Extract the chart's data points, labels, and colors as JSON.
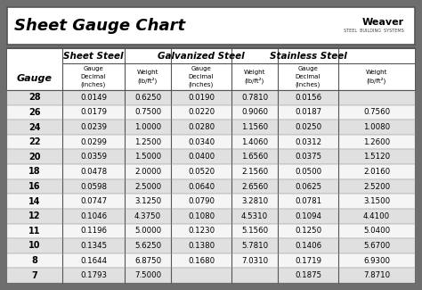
{
  "title": "Sheet Gauge Chart",
  "bg_outer": "#6e6e6e",
  "bg_white": "#ffffff",
  "bg_row_odd": "#e0e0e0",
  "bg_row_even": "#f5f5f5",
  "border_color": "#555555",
  "gauges": [
    28,
    26,
    24,
    22,
    20,
    18,
    16,
    14,
    12,
    11,
    10,
    8,
    7
  ],
  "sheet_steel": [
    [
      "0.0149",
      "0.6250"
    ],
    [
      "0.0179",
      "0.7500"
    ],
    [
      "0.0239",
      "1.0000"
    ],
    [
      "0.0299",
      "1.2500"
    ],
    [
      "0.0359",
      "1.5000"
    ],
    [
      "0.0478",
      "2.0000"
    ],
    [
      "0.0598",
      "2.5000"
    ],
    [
      "0.0747",
      "3.1250"
    ],
    [
      "0.1046",
      "4.3750"
    ],
    [
      "0.1196",
      "5.0000"
    ],
    [
      "0.1345",
      "5.6250"
    ],
    [
      "0.1644",
      "6.8750"
    ],
    [
      "0.1793",
      "7.5000"
    ]
  ],
  "galvanized_steel": [
    [
      "0.0190",
      "0.7810"
    ],
    [
      "0.0220",
      "0.9060"
    ],
    [
      "0.0280",
      "1.1560"
    ],
    [
      "0.0340",
      "1.4060"
    ],
    [
      "0.0400",
      "1.6560"
    ],
    [
      "0.0520",
      "2.1560"
    ],
    [
      "0.0640",
      "2.6560"
    ],
    [
      "0.0790",
      "3.2810"
    ],
    [
      "0.1080",
      "4.5310"
    ],
    [
      "0.1230",
      "5.1560"
    ],
    [
      "0.1380",
      "5.7810"
    ],
    [
      "0.1680",
      "7.0310"
    ],
    [
      "",
      ""
    ]
  ],
  "stainless_steel": [
    [
      "0.0156",
      ""
    ],
    [
      "0.0187",
      "0.7560"
    ],
    [
      "0.0250",
      "1.0080"
    ],
    [
      "0.0312",
      "1.2600"
    ],
    [
      "0.0375",
      "1.5120"
    ],
    [
      "0.0500",
      "2.0160"
    ],
    [
      "0.0625",
      "2.5200"
    ],
    [
      "0.0781",
      "3.1500"
    ],
    [
      "0.1094",
      "4.4100"
    ],
    [
      "0.1250",
      "5.0400"
    ],
    [
      "0.1406",
      "5.6700"
    ],
    [
      "0.1719",
      "6.9300"
    ],
    [
      "0.1875",
      "7.8710"
    ]
  ],
  "figw": 4.74,
  "figh": 3.25,
  "dpi": 100
}
